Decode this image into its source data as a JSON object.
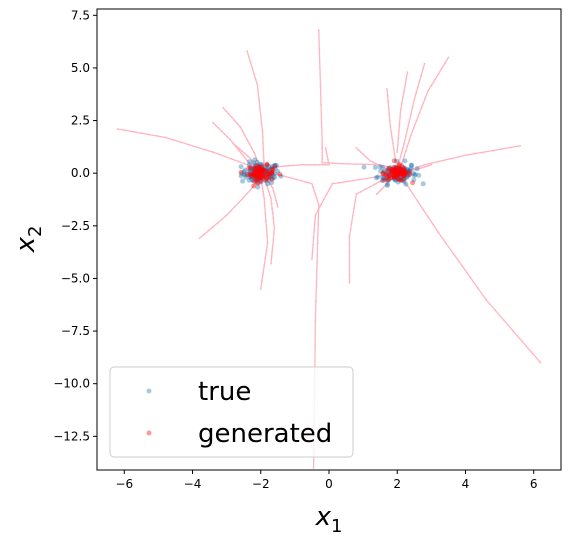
{
  "chart_data": {
    "type": "scatter",
    "xlabel_base": "x",
    "xlabel_sub": "1",
    "ylabel_base": "x",
    "ylabel_sub": "2",
    "xlim": [
      -6.8,
      6.8
    ],
    "ylim": [
      -14.1,
      7.8
    ],
    "xticks": [
      -6,
      -4,
      -2,
      0,
      2,
      4,
      6
    ],
    "yticks": [
      -12.5,
      -10.0,
      -7.5,
      -5.0,
      -2.5,
      0.0,
      2.5,
      5.0,
      7.5
    ],
    "ytick_labels": [
      "−12.5",
      "−10.0",
      "−7.5",
      "−5.0",
      "−2.5",
      "0.0",
      "2.5",
      "5.0",
      "7.5"
    ],
    "xtick_labels": [
      "−6",
      "−4",
      "−2",
      "0",
      "2",
      "4",
      "6"
    ],
    "legend_position": "lower-left",
    "colors": {
      "true": "#1f77b4",
      "generated": "#ff0000",
      "trajectory": "#ffb6c1"
    },
    "series": [
      {
        "name": "true",
        "clusters": [
          {
            "center": [
              -2.0,
              0.0
            ],
            "spread": 0.28,
            "count": 110
          },
          {
            "center": [
              2.0,
              0.0
            ],
            "spread": 0.28,
            "count": 110
          }
        ]
      },
      {
        "name": "generated",
        "clusters": [
          {
            "center": [
              -2.0,
              0.0
            ],
            "spread": 0.2,
            "count": 80
          },
          {
            "center": [
              2.0,
              0.0
            ],
            "spread": 0.2,
            "count": 80
          }
        ]
      }
    ],
    "trajectories": [
      [
        [
          -6.2,
          2.1
        ],
        [
          -4.8,
          1.7
        ],
        [
          -3.4,
          1.0
        ],
        [
          -2.3,
          0.35
        ],
        [
          -2.0,
          0.0
        ]
      ],
      [
        [
          -3.4,
          2.4
        ],
        [
          -2.9,
          1.6
        ],
        [
          -2.4,
          0.6
        ],
        [
          -2.1,
          0.1
        ]
      ],
      [
        [
          -3.1,
          3.1
        ],
        [
          -2.6,
          2.2
        ],
        [
          -2.2,
          1.0
        ],
        [
          -2.0,
          0.2
        ]
      ],
      [
        [
          -2.4,
          5.8
        ],
        [
          -2.1,
          4.2
        ],
        [
          -1.95,
          2.0
        ],
        [
          -1.9,
          0.3
        ]
      ],
      [
        [
          -2.8,
          1.4
        ],
        [
          -2.3,
          0.7
        ],
        [
          -2.1,
          0.1
        ]
      ],
      [
        [
          -3.8,
          -3.1
        ],
        [
          -3.0,
          -2.0
        ],
        [
          -2.3,
          -0.8
        ],
        [
          -2.0,
          -0.1
        ]
      ],
      [
        [
          -2.0,
          -5.5
        ],
        [
          -1.8,
          -3.3
        ],
        [
          -1.9,
          -1.2
        ],
        [
          -2.0,
          -0.2
        ]
      ],
      [
        [
          -1.7,
          -4.3
        ],
        [
          -1.6,
          -2.6
        ],
        [
          -1.7,
          -1.2
        ],
        [
          -1.9,
          -0.2
        ]
      ],
      [
        [
          -1.5,
          -1.6
        ],
        [
          -1.65,
          -0.7
        ],
        [
          -1.9,
          -0.1
        ]
      ],
      [
        [
          -0.3,
          6.8
        ],
        [
          -0.2,
          1.5
        ],
        [
          -0.2,
          0.5
        ],
        [
          0.4,
          0.45
        ],
        [
          1.5,
          0.4
        ],
        [
          2.0,
          0.2
        ]
      ],
      [
        [
          -0.1,
          1.2
        ],
        [
          0.0,
          0.4
        ],
        [
          -0.8,
          0.4
        ],
        [
          -1.6,
          0.3
        ],
        [
          -1.9,
          0.1
        ]
      ],
      [
        [
          -0.45,
          -14.0
        ],
        [
          -0.4,
          -7.0
        ],
        [
          -0.3,
          -1.5
        ],
        [
          -0.5,
          -0.5
        ],
        [
          -1.4,
          -0.1
        ],
        [
          -1.9,
          0.0
        ]
      ],
      [
        [
          0.6,
          -5.2
        ],
        [
          0.6,
          -3.0
        ],
        [
          0.8,
          -1.0
        ],
        [
          1.6,
          -0.3
        ],
        [
          2.0,
          0.0
        ]
      ],
      [
        [
          -0.5,
          -4.1
        ],
        [
          -0.4,
          -2.0
        ],
        [
          0.1,
          -0.5
        ],
        [
          1.3,
          -0.2
        ],
        [
          1.9,
          0.0
        ]
      ],
      [
        [
          0.8,
          1.2
        ],
        [
          1.2,
          0.6
        ],
        [
          1.8,
          0.1
        ]
      ],
      [
        [
          3.5,
          5.5
        ],
        [
          2.9,
          3.9
        ],
        [
          2.4,
          1.8
        ],
        [
          2.1,
          0.3
        ]
      ],
      [
        [
          2.8,
          5.2
        ],
        [
          2.5,
          3.5
        ],
        [
          2.2,
          1.4
        ],
        [
          2.0,
          0.2
        ]
      ],
      [
        [
          2.3,
          4.8
        ],
        [
          2.1,
          3.0
        ],
        [
          2.0,
          1.0
        ]
      ],
      [
        [
          1.7,
          4.0
        ],
        [
          1.8,
          2.2
        ],
        [
          1.95,
          0.6
        ]
      ],
      [
        [
          5.6,
          1.3
        ],
        [
          4.0,
          0.85
        ],
        [
          2.8,
          0.4
        ],
        [
          2.1,
          0.0
        ]
      ],
      [
        [
          3.0,
          0.4
        ],
        [
          2.6,
          0.2
        ],
        [
          2.1,
          0.0
        ]
      ],
      [
        [
          6.2,
          -9.0
        ],
        [
          4.6,
          -6.0
        ],
        [
          3.2,
          -2.8
        ],
        [
          2.3,
          -0.6
        ],
        [
          2.0,
          -0.1
        ]
      ],
      [
        [
          1.4,
          -1.0
        ],
        [
          1.7,
          -0.5
        ],
        [
          1.95,
          -0.1
        ]
      ]
    ],
    "legend": [
      {
        "label": "true",
        "series": "true"
      },
      {
        "label": "generated",
        "series": "generated"
      }
    ]
  }
}
